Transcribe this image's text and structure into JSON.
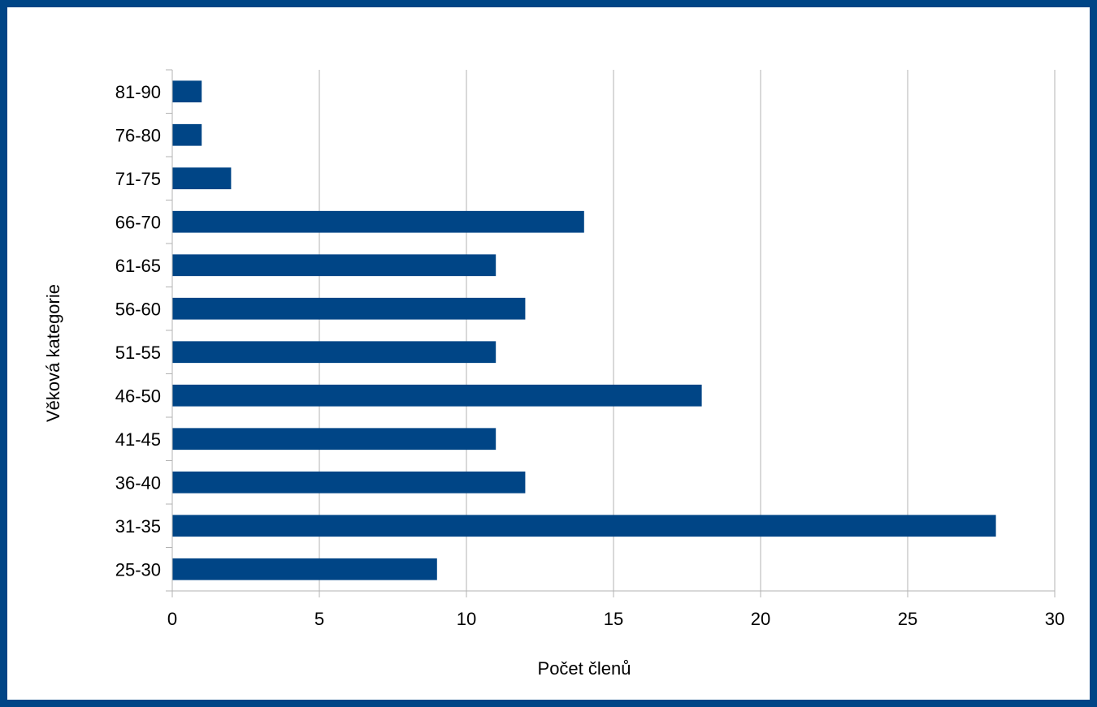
{
  "colors": {
    "border": "#004586",
    "bar": "#004586",
    "grid": "#b3b3b3",
    "background": "#ffffff"
  },
  "chart_data": {
    "type": "bar",
    "orientation": "horizontal",
    "categories": [
      "25-30",
      "31-35",
      "36-40",
      "41-45",
      "46-50",
      "51-55",
      "56-60",
      "61-65",
      "66-70",
      "71-75",
      "76-80",
      "81-90"
    ],
    "values": [
      9,
      28,
      12,
      11,
      18,
      11,
      12,
      11,
      14,
      2,
      1,
      1
    ],
    "xlabel": "Počet členů",
    "ylabel": "Věková kategorie",
    "xlim": [
      0,
      30
    ],
    "xticks": [
      0,
      5,
      10,
      15,
      20,
      25,
      30
    ],
    "grid": "vertical",
    "legend": "none"
  }
}
